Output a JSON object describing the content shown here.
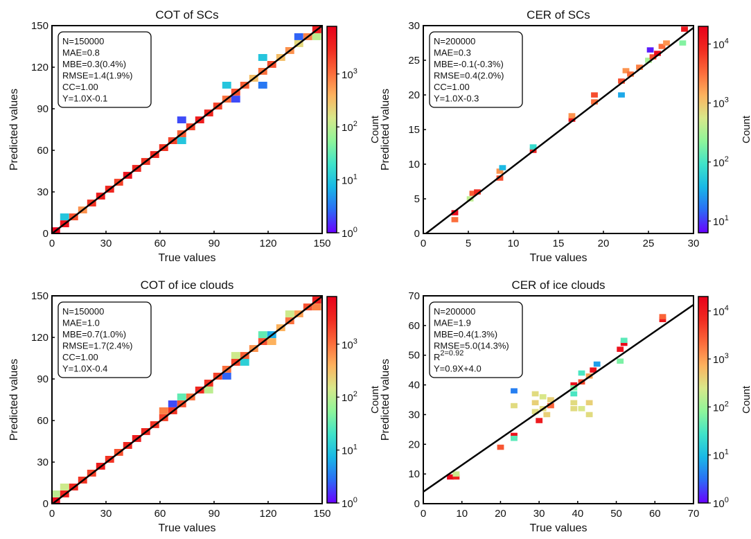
{
  "colormap": [
    "#6a00ff",
    "#2b6cf5",
    "#19b8e6",
    "#3fe3c9",
    "#8ef59a",
    "#d8e88a",
    "#fdb25e",
    "#fb6a3a",
    "#f02a20",
    "#e8001a"
  ],
  "chart_data": [
    {
      "type": "heatmap",
      "title": "COT of SCs",
      "xlabel": "True values",
      "ylabel": "Predicted values",
      "xlim": [
        0,
        150
      ],
      "ylim": [
        0,
        150
      ],
      "xticks": [
        "0",
        "30",
        "60",
        "90",
        "120",
        "150"
      ],
      "yticks": [
        "0",
        "30",
        "60",
        "90",
        "120",
        "150"
      ],
      "colorbar": {
        "label": "Count",
        "ticks": [
          "10^0",
          "10^1",
          "10^2",
          "10^3"
        ],
        "log_range": [
          0,
          3.9
        ]
      },
      "stats": [
        "N=150000",
        "MAE=0.8",
        "MBE=0.3(0.4%)",
        "RMSE=1.4(1.9%)",
        "CC=1.00",
        "Y=1.0X-0.1"
      ],
      "fit_line": {
        "slope": 1.0,
        "intercept": -0.1
      },
      "bins": [
        [
          2,
          2,
          3.9
        ],
        [
          7,
          7,
          3.7
        ],
        [
          7,
          12,
          1.0
        ],
        [
          12,
          12,
          3.2
        ],
        [
          17,
          17,
          2.8
        ],
        [
          22,
          22,
          3.4
        ],
        [
          27,
          27,
          3.6
        ],
        [
          32,
          32,
          3.5
        ],
        [
          37,
          37,
          3.3
        ],
        [
          42,
          42,
          3.7
        ],
        [
          47,
          47,
          3.5
        ],
        [
          52,
          52,
          3.4
        ],
        [
          57,
          57,
          3.5
        ],
        [
          62,
          62,
          3.4
        ],
        [
          67,
          67,
          3.3
        ],
        [
          72,
          72,
          3.1
        ],
        [
          72,
          82,
          0.3
        ],
        [
          72,
          67,
          1.0
        ],
        [
          77,
          77,
          3.3
        ],
        [
          82,
          82,
          3.6
        ],
        [
          87,
          87,
          3.5
        ],
        [
          92,
          92,
          3.3
        ],
        [
          97,
          97,
          3.0
        ],
        [
          102,
          102,
          3.2
        ],
        [
          102,
          97,
          0.3
        ],
        [
          97,
          107,
          1.0
        ],
        [
          107,
          107,
          3.1
        ],
        [
          112,
          112,
          2.5
        ],
        [
          117,
          117,
          3.0
        ],
        [
          117,
          107,
          0.5
        ],
        [
          117,
          127,
          1.0
        ],
        [
          122,
          122,
          3.2
        ],
        [
          127,
          127,
          2.5
        ],
        [
          132,
          132,
          2.8
        ],
        [
          137,
          137,
          2.3
        ],
        [
          137,
          142,
          0.4
        ],
        [
          142,
          142,
          2.9
        ],
        [
          147,
          147,
          3.6
        ],
        [
          147,
          142,
          2.0
        ]
      ]
    },
    {
      "type": "heatmap",
      "title": "CER of SCs",
      "xlabel": "True values",
      "ylabel": "Predicted values",
      "xlim": [
        0,
        30
      ],
      "ylim": [
        0,
        30
      ],
      "xticks": [
        "0",
        "5",
        "10",
        "15",
        "20",
        "25",
        "30"
      ],
      "yticks": [
        "0",
        "5",
        "10",
        "15",
        "20",
        "25",
        "30"
      ],
      "colorbar": {
        "label": "Count",
        "ticks": [
          "10^1",
          "10^2",
          "10^3",
          "10^4"
        ],
        "log_range": [
          0.8,
          4.3
        ]
      },
      "stats": [
        "N=200000",
        "MAE=0.3",
        "MBE=-0.1(-0.3%)",
        "RMSE=0.4(2.0%)",
        "CC=1.00",
        "Y=1.0X-0.3"
      ],
      "fit_line": {
        "slope": 1.0,
        "intercept": -0.3
      },
      "bins": [
        [
          3.5,
          3,
          4.2
        ],
        [
          3.5,
          2,
          3.5
        ],
        [
          5.5,
          5.8,
          3.6
        ],
        [
          5.2,
          5,
          2.6
        ],
        [
          6,
          6,
          3.9
        ],
        [
          8.5,
          8,
          3.7
        ],
        [
          8.5,
          9,
          3.3
        ],
        [
          8.8,
          9.5,
          1.6
        ],
        [
          12.2,
          12,
          4.0
        ],
        [
          12.2,
          12.5,
          1.9
        ],
        [
          16.5,
          16.5,
          4.1
        ],
        [
          16.5,
          17,
          3.3
        ],
        [
          19,
          19,
          3.5
        ],
        [
          19,
          20,
          3.7
        ],
        [
          22,
          22,
          3.7
        ],
        [
          22,
          20,
          1.5
        ],
        [
          22.5,
          23.5,
          3.3
        ],
        [
          23,
          23,
          3.5
        ],
        [
          24,
          24,
          3.4
        ],
        [
          25,
          25,
          2.5
        ],
        [
          25.2,
          26.5,
          0.9
        ],
        [
          25.5,
          25.5,
          3.7
        ],
        [
          26,
          26,
          4.2
        ],
        [
          26.5,
          27,
          3.5
        ],
        [
          27,
          27.5,
          3.3
        ],
        [
          28.8,
          27.5,
          2.3
        ],
        [
          29,
          29.5,
          4.1
        ]
      ]
    },
    {
      "type": "heatmap",
      "title": "COT of ice clouds",
      "xlabel": "True values",
      "ylabel": "Predicted values",
      "xlim": [
        0,
        150
      ],
      "ylim": [
        0,
        150
      ],
      "xticks": [
        "0",
        "30",
        "60",
        "90",
        "120",
        "150"
      ],
      "yticks": [
        "0",
        "30",
        "60",
        "90",
        "120",
        "150"
      ],
      "colorbar": {
        "label": "Count",
        "ticks": [
          "10^0",
          "10^1",
          "10^2",
          "10^3"
        ],
        "log_range": [
          0,
          3.9
        ]
      },
      "stats": [
        "N=150000",
        "MAE=1.0",
        "MBE=0.7(1.0%)",
        "RMSE=1.7(2.4%)",
        "CC=1.00",
        "Y=1.0X-0.4"
      ],
      "fit_line": {
        "slope": 1.0,
        "intercept": -0.4
      },
      "bins": [
        [
          2,
          2,
          3.8
        ],
        [
          2,
          7,
          2.0
        ],
        [
          7,
          7,
          3.6
        ],
        [
          7,
          12,
          2.1
        ],
        [
          12,
          12,
          3.5
        ],
        [
          17,
          17,
          3.4
        ],
        [
          22,
          22,
          3.3
        ],
        [
          27,
          27,
          3.6
        ],
        [
          32,
          32,
          3.4
        ],
        [
          37,
          37,
          3.2
        ],
        [
          42,
          42,
          3.5
        ],
        [
          47,
          47,
          3.6
        ],
        [
          52,
          52,
          3.5
        ],
        [
          57,
          57,
          3.4
        ],
        [
          62,
          62,
          3.3
        ],
        [
          62,
          67,
          2.9
        ],
        [
          67,
          67,
          3.4
        ],
        [
          67,
          72,
          0.3
        ],
        [
          72,
          72,
          3.2
        ],
        [
          72,
          77,
          1.5
        ],
        [
          77,
          77,
          3.0
        ],
        [
          82,
          82,
          3.5
        ],
        [
          87,
          87,
          3.4
        ],
        [
          87,
          82,
          2.0
        ],
        [
          92,
          92,
          3.3
        ],
        [
          97,
          97,
          3.0
        ],
        [
          97,
          92,
          0.4
        ],
        [
          102,
          102,
          3.3
        ],
        [
          102,
          107,
          2.1
        ],
        [
          107,
          107,
          3.1
        ],
        [
          107,
          102,
          1.1
        ],
        [
          112,
          112,
          2.8
        ],
        [
          117,
          117,
          3.2
        ],
        [
          117,
          122,
          1.5
        ],
        [
          122,
          122,
          0.8
        ],
        [
          122,
          117,
          2.6
        ],
        [
          127,
          127,
          2.6
        ],
        [
          132,
          132,
          3.0
        ],
        [
          132,
          137,
          2.1
        ],
        [
          137,
          137,
          2.7
        ],
        [
          142,
          142,
          3.2
        ],
        [
          147,
          147,
          3.6
        ],
        [
          147,
          142,
          2.9
        ]
      ]
    },
    {
      "type": "heatmap",
      "title": "CER of ice clouds",
      "xlabel": "True values",
      "ylabel": "Predicted values",
      "xlim": [
        0,
        70
      ],
      "ylim": [
        0,
        70
      ],
      "xticks": [
        "0",
        "10",
        "20",
        "30",
        "40",
        "50",
        "60",
        "70"
      ],
      "yticks": [
        "0",
        "10",
        "20",
        "30",
        "40",
        "50",
        "60",
        "70"
      ],
      "colorbar": {
        "label": "Count",
        "ticks": [
          "10^0",
          "10^1",
          "10^2",
          "10^3",
          "10^4"
        ],
        "log_range": [
          0,
          4.3
        ]
      },
      "stats": [
        "N=200000",
        "MAE=1.9",
        "MBE=0.4(1.3%)",
        "RMSE=5.0(14.3%)",
        "R^2=0.92",
        "Y=0.9X+4.0"
      ],
      "fit_line": {
        "slope": 0.9,
        "intercept": 4.0
      },
      "bins": [
        [
          7,
          9,
          4.2
        ],
        [
          8.5,
          9,
          3.9
        ],
        [
          8.5,
          10,
          2.3
        ],
        [
          20,
          19,
          3.5
        ],
        [
          23.5,
          23,
          4.1
        ],
        [
          23.5,
          22,
          1.6
        ],
        [
          23.5,
          38,
          0.6
        ],
        [
          23.5,
          33,
          2.5
        ],
        [
          29,
          37,
          2.5
        ],
        [
          29,
          34,
          2.6
        ],
        [
          29,
          31,
          2.5
        ],
        [
          30,
          28,
          4.0
        ],
        [
          31,
          36,
          2.4
        ],
        [
          31,
          32,
          2.5
        ],
        [
          32,
          30,
          2.6
        ],
        [
          33,
          33,
          3.4
        ],
        [
          33,
          35,
          2.6
        ],
        [
          39,
          40,
          4.1
        ],
        [
          39,
          37,
          1.5
        ],
        [
          39,
          39,
          1.8
        ],
        [
          39,
          34,
          2.5
        ],
        [
          39,
          32,
          2.5
        ],
        [
          41,
          41,
          3.6
        ],
        [
          41,
          44,
          1.5
        ],
        [
          41,
          32,
          2.4
        ],
        [
          43,
          43,
          3.0
        ],
        [
          43,
          30,
          2.5
        ],
        [
          43,
          34,
          2.6
        ],
        [
          44,
          45,
          4.1
        ],
        [
          45,
          47,
          0.8
        ],
        [
          51,
          48,
          1.8
        ],
        [
          51,
          52,
          4.1
        ],
        [
          52,
          54,
          4.2
        ],
        [
          52,
          55,
          1.6
        ],
        [
          62,
          62,
          4.0
        ],
        [
          62,
          63,
          3.4
        ]
      ]
    }
  ]
}
